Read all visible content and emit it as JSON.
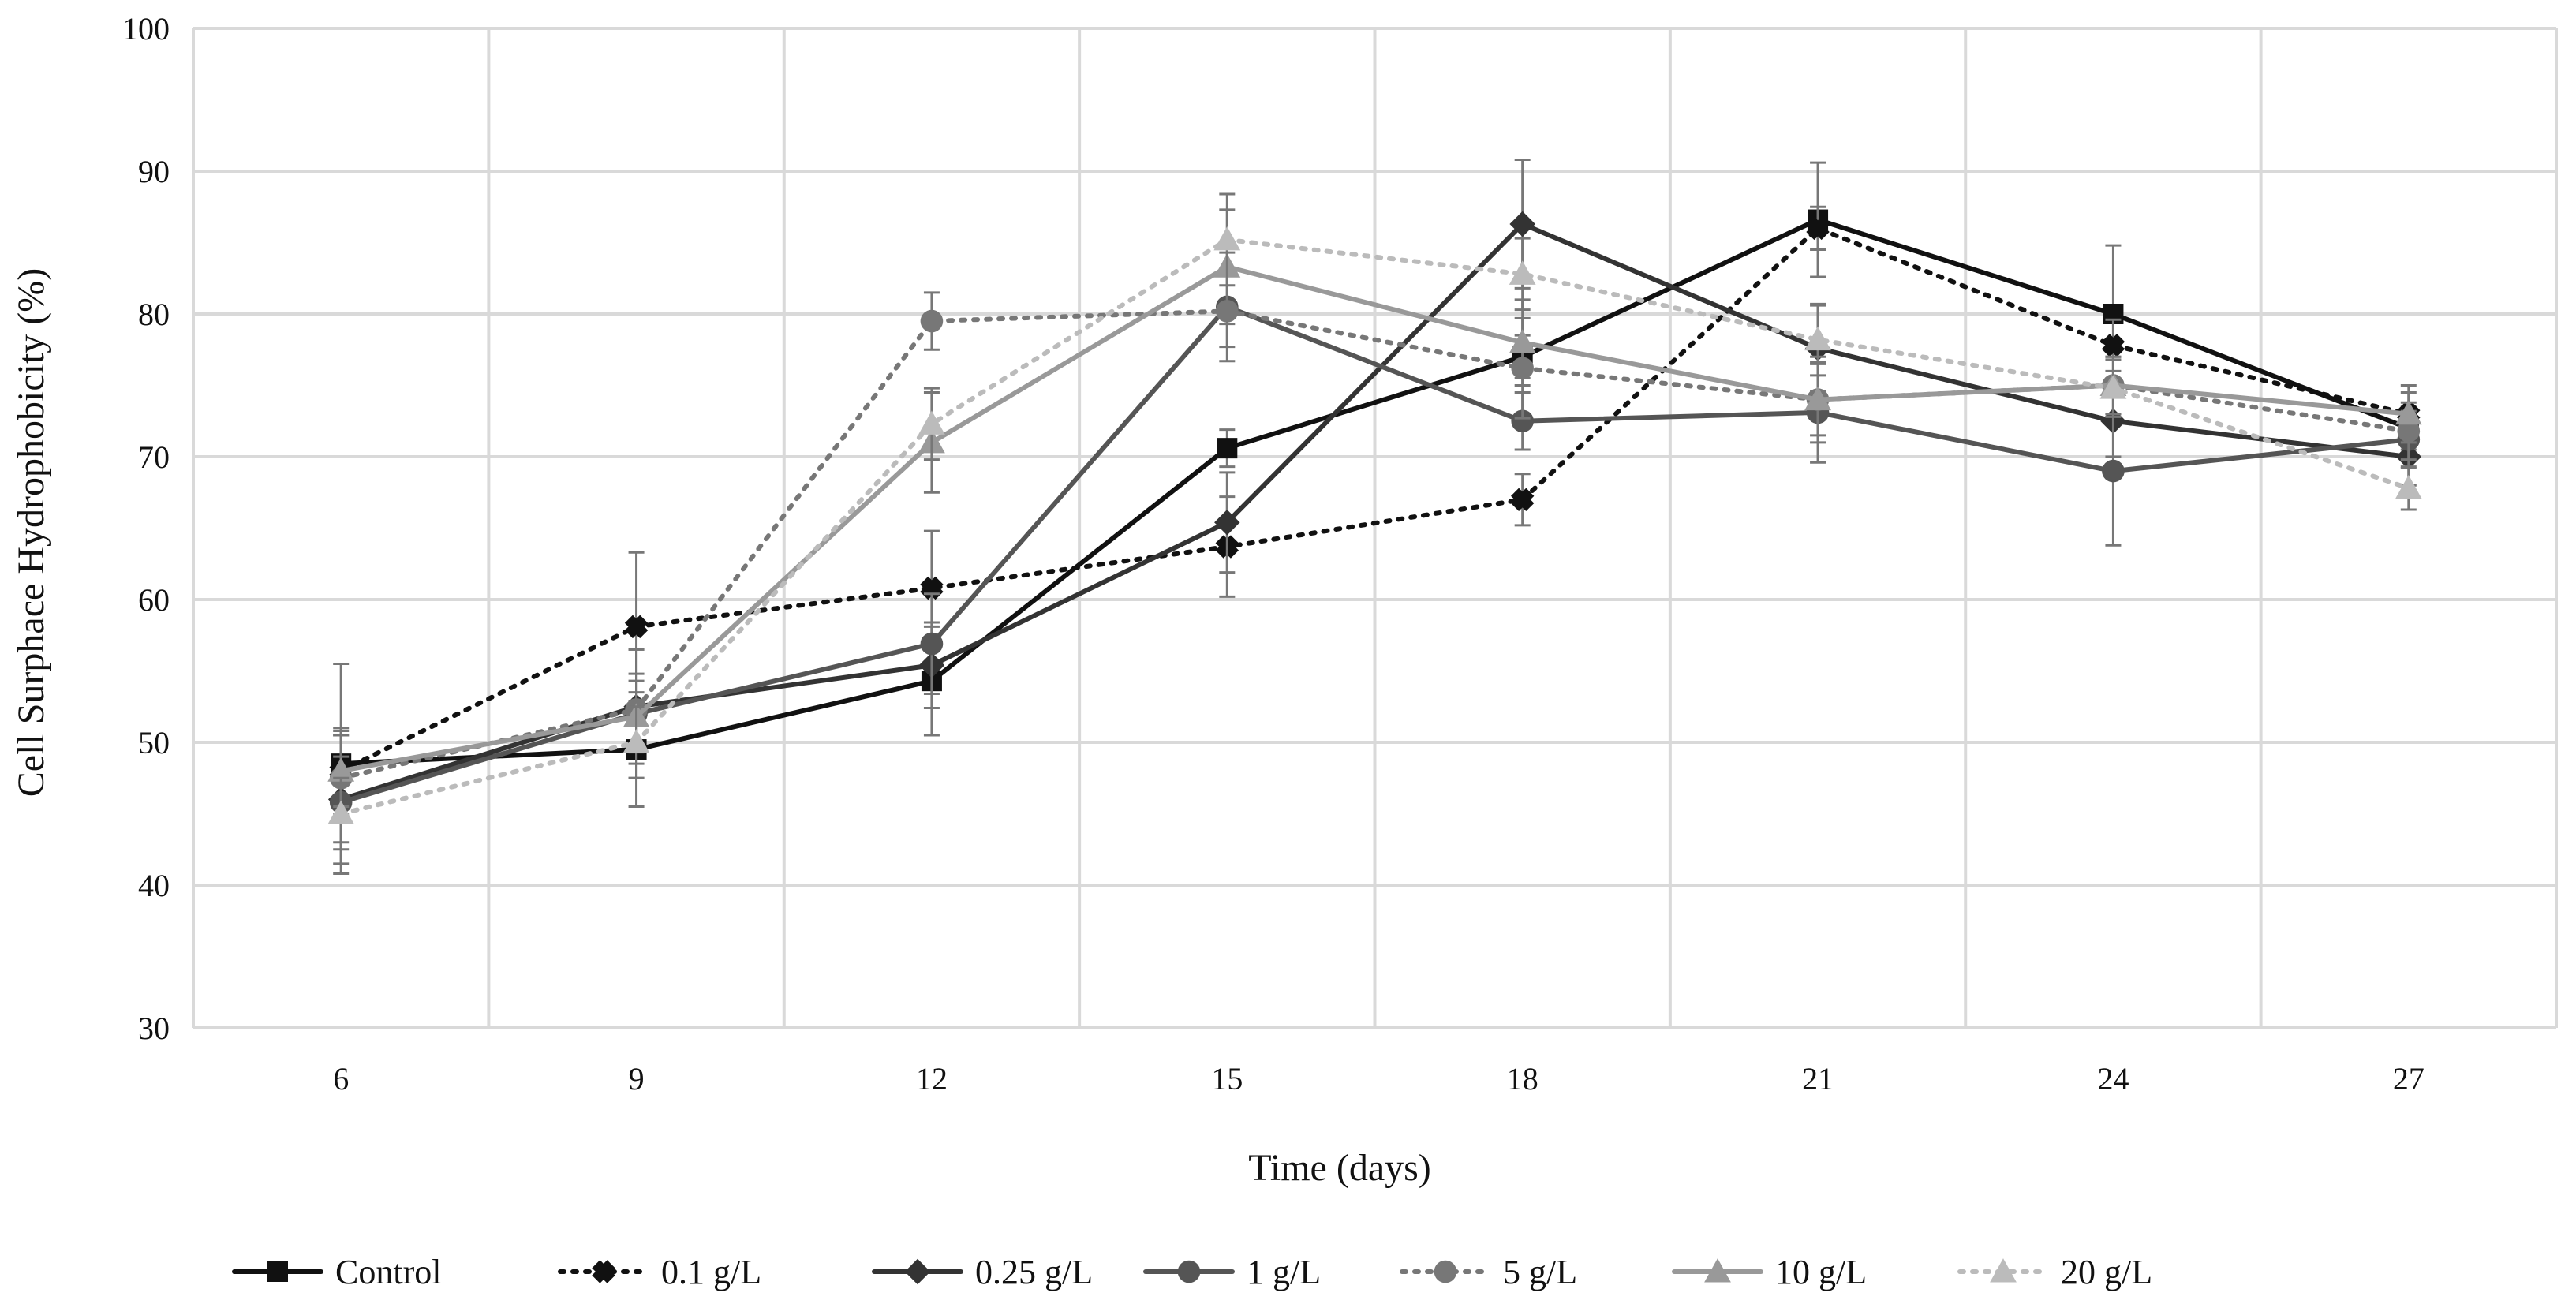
{
  "chart_data": {
    "type": "line",
    "title": "",
    "xlabel": "Time (days)",
    "ylabel": "Cell Surphace Hydrophobicity (%)",
    "categories": [
      "6",
      "9",
      "12",
      "15",
      "18",
      "21",
      "24",
      "27"
    ],
    "ylim": [
      30,
      100
    ],
    "yticks": [
      "30",
      "40",
      "50",
      "60",
      "70",
      "80",
      "90",
      "100"
    ],
    "grid": true,
    "legend_position": "bottom",
    "series": [
      {
        "name": "Control",
        "color": "#111111",
        "dash": "solid",
        "marker": "square",
        "values": [
          48.5,
          49.5,
          54.3,
          70.6,
          77.0,
          86.6,
          80.0,
          72.0
        ],
        "errors": [
          7.0,
          4.0,
          3.8,
          1.3,
          1.5,
          4.0,
          4.8,
          1.5
        ]
      },
      {
        "name": "0.1 g/L",
        "color": "#111111",
        "dash": "dotted",
        "marker": "cross",
        "values": [
          48.0,
          58.1,
          60.8,
          63.7,
          67.0,
          86.0,
          77.8,
          73.0
        ],
        "errors": [
          3.0,
          5.2,
          4.0,
          3.5,
          1.8,
          1.5,
          1.8,
          1.5
        ]
      },
      {
        "name": "0.25 g/L",
        "color": "#333333",
        "dash": "solid",
        "marker": "diamond",
        "values": [
          46.0,
          52.5,
          55.4,
          65.4,
          86.3,
          77.6,
          72.5,
          70.0
        ],
        "errors": [
          3.0,
          4.0,
          3.0,
          3.5,
          4.5,
          3.0,
          2.5,
          2.0
        ]
      },
      {
        "name": "1 g/L",
        "color": "#555555",
        "dash": "solid",
        "marker": "circle",
        "values": [
          45.8,
          52.0,
          56.9,
          80.5,
          72.5,
          73.1,
          69.0,
          71.2
        ],
        "errors": [
          5.0,
          4.5,
          3.5,
          3.8,
          2.0,
          3.5,
          5.2,
          2.0
        ]
      },
      {
        "name": "5 g/L",
        "color": "#777777",
        "dash": "dotted",
        "marker": "circle",
        "values": [
          47.5,
          52.3,
          79.5,
          80.2,
          76.2,
          74.0,
          75.0,
          71.8
        ],
        "errors": [
          3.0,
          2.5,
          2.0,
          2.5,
          3.5,
          2.5,
          2.0,
          2.0
        ]
      },
      {
        "name": "10 g/L",
        "color": "#999999",
        "dash": "solid",
        "marker": "triangle",
        "values": [
          48.0,
          51.8,
          71.0,
          83.3,
          78.0,
          74.0,
          75.0,
          73.0
        ],
        "errors": [
          2.5,
          2.5,
          3.5,
          4.0,
          3.0,
          3.0,
          2.0,
          2.0
        ]
      },
      {
        "name": "20 g/L",
        "color": "#bbbbbb",
        "dash": "dotted",
        "marker": "triangle",
        "values": [
          45.0,
          50.0,
          72.3,
          85.2,
          82.8,
          78.2,
          74.8,
          67.8
        ],
        "errors": [
          2.5,
          2.5,
          2.5,
          3.2,
          2.5,
          2.5,
          2.0,
          1.5
        ]
      }
    ]
  }
}
